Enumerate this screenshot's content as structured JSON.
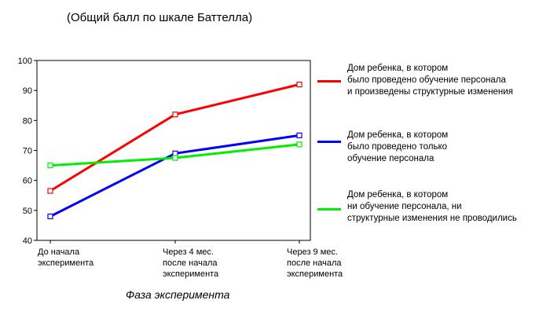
{
  "chart_data": {
    "type": "line",
    "title": "(Общий балл по шкале Баттелла)",
    "xlabel": "Фаза эксперимента",
    "ylabel": "",
    "ylim": [
      40,
      100
    ],
    "yticks": [
      40,
      50,
      60,
      70,
      80,
      90,
      100
    ],
    "categories": [
      "До начала\nэксперимента",
      "Через 4 мес.\nпосле начала\nэксперимента",
      "Через 9 мес.\nпосле начала\nэксперимента"
    ],
    "series": [
      {
        "name": "Дом ребенка, в котором\nбыло проведено обучение персонала\nи произведены структурные изменения",
        "color": "#ff0000",
        "values": [
          56.5,
          82,
          92
        ]
      },
      {
        "name": "Дом ребенка, в котором\nбыло проведено только\nобучение персонала",
        "color": "#0000ff",
        "values": [
          48,
          69,
          75
        ]
      },
      {
        "name": "Дом ребенка, в котором\nни обучение персонала, ни\nструктурные изменения не проводились",
        "color": "#00ee00",
        "values": [
          65,
          67.5,
          72
        ]
      }
    ],
    "grid": false,
    "legend": "right"
  }
}
